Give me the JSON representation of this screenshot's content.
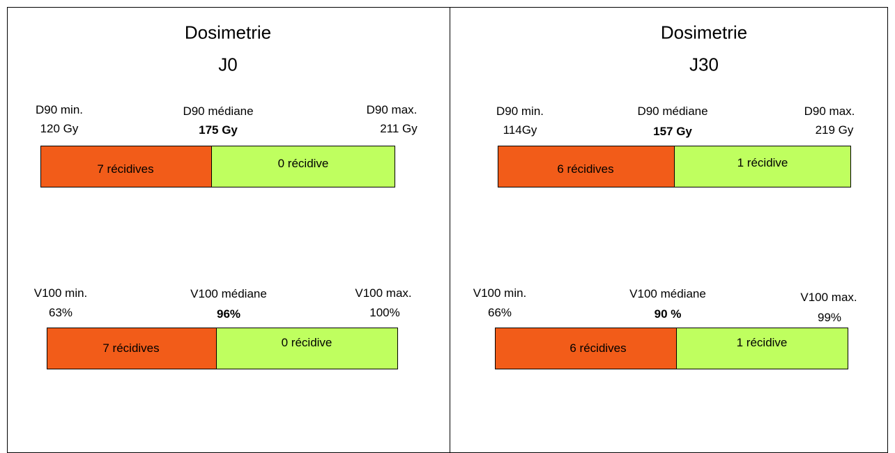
{
  "panels": [
    {
      "title": [
        "Dosimetrie",
        "J0"
      ],
      "groups": [
        {
          "min_label": "D90 min.",
          "min_value": "120 Gy",
          "median_label": "D90 médiane",
          "median_value": "175 Gy",
          "max_label": "D90 max.",
          "max_value": "211 Gy",
          "left_bar": "7 récidives",
          "right_bar": "0 récidive"
        },
        {
          "min_label": "V100 min.",
          "min_value": "63%",
          "median_label": "V100 médiane",
          "median_value": "96%",
          "max_label": "V100 max.",
          "max_value": "100%",
          "left_bar": "7 récidives",
          "right_bar": "0 récidive"
        }
      ]
    },
    {
      "title": [
        "Dosimetrie",
        "J30"
      ],
      "groups": [
        {
          "min_label": "D90 min.",
          "min_value": "114Gy",
          "median_label": "D90 médiane",
          "median_value": "157 Gy",
          "max_label": "D90 max.",
          "max_value": "219 Gy",
          "left_bar": "6 récidives",
          "right_bar": "1 récidive"
        },
        {
          "min_label": "V100 min.",
          "min_value": "66%",
          "median_label": "V100 médiane",
          "median_value": "90 %",
          "max_label": "V100 max.",
          "max_value": "99%",
          "left_bar": "6 récidives",
          "right_bar": "1 récidive"
        }
      ]
    }
  ]
}
